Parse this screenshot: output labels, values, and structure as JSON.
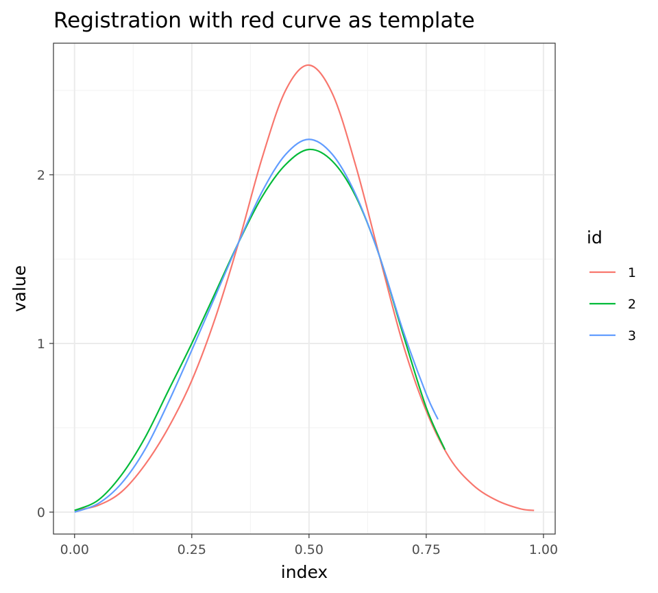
{
  "chart_data": {
    "type": "line",
    "title": "Registration with red curve as template",
    "xlabel": "index",
    "ylabel": "value",
    "xlim": [
      -0.045,
      1.025
    ],
    "ylim": [
      -0.13,
      2.78
    ],
    "x_ticks": [
      0.0,
      0.25,
      0.5,
      0.75,
      1.0
    ],
    "x_tick_labels": [
      "0.00",
      "0.25",
      "0.50",
      "0.75",
      "1.00"
    ],
    "y_ticks": [
      0,
      1,
      2
    ],
    "y_tick_labels": [
      "0",
      "1",
      "2"
    ],
    "grid": true,
    "legend": {
      "title": "id",
      "position": "right"
    },
    "series": [
      {
        "name": "1",
        "color": "#F8766D",
        "x": [
          0.0,
          0.05,
          0.1,
          0.15,
          0.2,
          0.25,
          0.3,
          0.35,
          0.4,
          0.45,
          0.5,
          0.55,
          0.6,
          0.65,
          0.7,
          0.75,
          0.8,
          0.85,
          0.9,
          0.95,
          0.98
        ],
        "y": [
          0.01,
          0.04,
          0.12,
          0.28,
          0.5,
          0.78,
          1.15,
          1.6,
          2.1,
          2.5,
          2.65,
          2.48,
          2.05,
          1.52,
          1.0,
          0.6,
          0.32,
          0.16,
          0.07,
          0.02,
          0.01
        ]
      },
      {
        "name": "2",
        "color": "#00BA38",
        "x": [
          0.0,
          0.05,
          0.1,
          0.15,
          0.2,
          0.25,
          0.3,
          0.35,
          0.4,
          0.45,
          0.5,
          0.55,
          0.6,
          0.65,
          0.7,
          0.75,
          0.79
        ],
        "y": [
          0.01,
          0.07,
          0.22,
          0.44,
          0.72,
          1.0,
          1.3,
          1.6,
          1.87,
          2.06,
          2.15,
          2.08,
          1.87,
          1.52,
          1.06,
          0.62,
          0.37
        ]
      },
      {
        "name": "3",
        "color": "#619CFF",
        "x": [
          0.0,
          0.05,
          0.1,
          0.15,
          0.2,
          0.25,
          0.3,
          0.35,
          0.4,
          0.45,
          0.5,
          0.55,
          0.6,
          0.65,
          0.7,
          0.75,
          0.775
        ],
        "y": [
          0.0,
          0.05,
          0.17,
          0.37,
          0.65,
          0.96,
          1.28,
          1.6,
          1.9,
          2.12,
          2.21,
          2.12,
          1.88,
          1.52,
          1.08,
          0.7,
          0.55
        ]
      }
    ]
  }
}
